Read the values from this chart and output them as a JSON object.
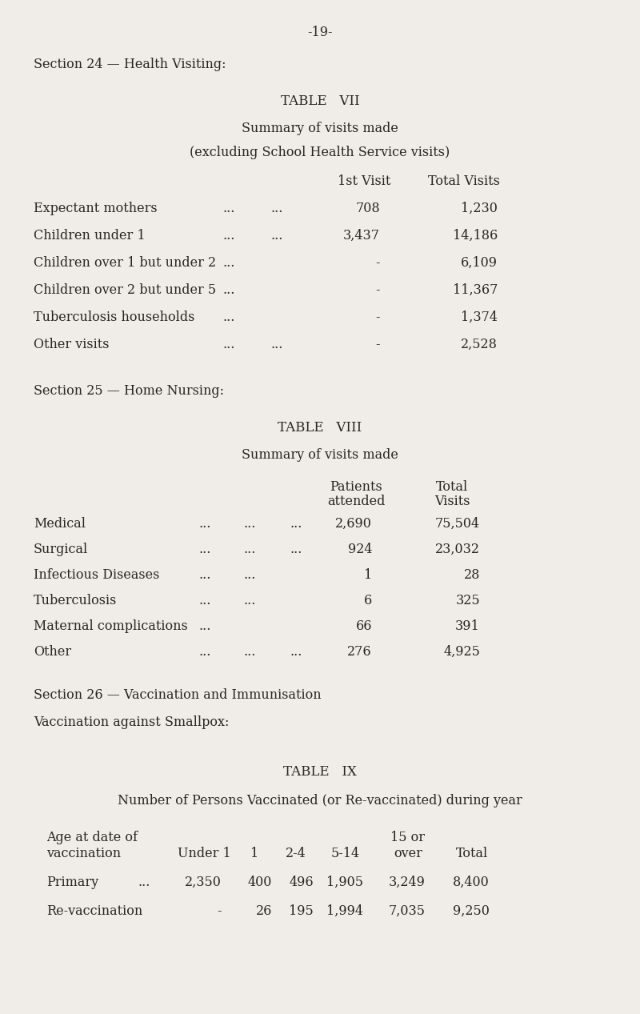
{
  "page_number": "-19-",
  "bg_color": "#f0ede8",
  "text_color": "#2a2520",
  "section24_header": "Section 24 — Health Visiting:",
  "table7_title": "TABLE   VII",
  "table7_subtitle": "Summary of visits made",
  "table7_subsubtitle": "(excluding School Health Service visits)",
  "table7_col1": "1st Visit",
  "table7_col2": "Total Visits",
  "table7_rows": [
    [
      "Expectant mothers",
      "...",
      "...",
      "708",
      "1,230"
    ],
    [
      "Children under 1",
      "...",
      "...",
      "3,437",
      "14,186"
    ],
    [
      "Children over 1 but under 2",
      "...",
      "",
      "-",
      "6,109"
    ],
    [
      "Children over 2 but under 5",
      "...",
      "",
      "-",
      "11,367"
    ],
    [
      "Tuberculosis households",
      "...",
      "",
      "-",
      "1,374"
    ],
    [
      "Other visits",
      "...",
      "...",
      "-",
      "2,528"
    ]
  ],
  "section25_header": "Section 25 — Home Nursing:",
  "table8_title": "TABLE   VIII",
  "table8_subtitle": "Summary of visits made",
  "table8_rows": [
    [
      "Medical",
      "...",
      "...",
      "...",
      "2,690",
      "75,504"
    ],
    [
      "Surgical",
      "...",
      "...",
      "...",
      "924",
      "23,032"
    ],
    [
      "Infectious Diseases",
      "...",
      "...",
      "",
      "1",
      "28"
    ],
    [
      "Tuberculosis",
      "...",
      "...",
      "",
      "6",
      "325"
    ],
    [
      "Maternal complications",
      "...",
      "",
      "",
      "66",
      "391"
    ],
    [
      "Other",
      "...",
      "...",
      "...",
      "276",
      "4,925"
    ]
  ],
  "section26_header": "Section 26 — Vaccination and Immunisation",
  "vacc_subheader": "Vaccination against Smallpox:",
  "table9_title": "TABLE   IX",
  "table9_subtitle": "Number of Persons Vaccinated (or Re-vaccinated) during year",
  "table9_age_label1": "Age at date of",
  "table9_age_label2": "vaccination",
  "table9_col15or": "15 or",
  "table9_col_headers": [
    "Under 1",
    "1",
    "2-4",
    "5-14",
    "over",
    "Total"
  ],
  "table9_rows": [
    [
      "Primary",
      "...",
      "2,350",
      "400",
      "496",
      "1,905",
      "3,249",
      "8,400"
    ],
    [
      "Re-vaccination",
      "",
      "-",
      "26",
      "195",
      "1,994",
      "7,035",
      "9,250"
    ]
  ]
}
